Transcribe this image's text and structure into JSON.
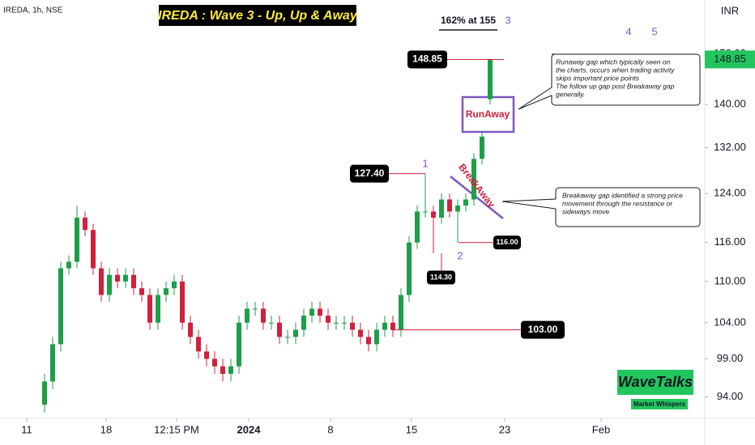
{
  "chart_data": {
    "type": "candlestick",
    "title": "IREDA : Wave 3 - Up, Up & Away",
    "symbol": "IREDA, 1h, NSE",
    "currency": "INR",
    "x": [
      0,
      1,
      2,
      3,
      4,
      5,
      6,
      7,
      8,
      9,
      10,
      11,
      12,
      13,
      14,
      15,
      16,
      17,
      18,
      19,
      20,
      21,
      22,
      23,
      24,
      25,
      26,
      27,
      28,
      29,
      30,
      31,
      32,
      33,
      34,
      35,
      36,
      37,
      38,
      39,
      40,
      41,
      42,
      43,
      44,
      45,
      46,
      47,
      48,
      49,
      50,
      51,
      52,
      53,
      54,
      55
    ],
    "open": [
      93,
      96,
      101,
      112,
      113,
      120,
      118,
      112,
      108,
      111,
      110,
      111,
      109,
      108,
      104,
      108,
      109,
      110,
      104,
      102,
      100,
      99,
      98,
      97,
      98,
      104,
      106,
      106,
      104,
      104,
      102,
      102,
      103,
      105,
      106,
      105,
      104,
      104,
      104,
      103,
      102,
      101,
      103,
      104,
      103,
      108,
      116,
      121,
      121,
      120,
      123,
      121,
      122,
      123,
      130,
      141
    ],
    "high": [
      97,
      102,
      113,
      114,
      122,
      121,
      119,
      113,
      112,
      112,
      112,
      112,
      110,
      109,
      109,
      110,
      111,
      111,
      105,
      103,
      101,
      100,
      99,
      99,
      105,
      107,
      107,
      107,
      105,
      105,
      103,
      104,
      106,
      107,
      107,
      106,
      105,
      105,
      105,
      104,
      103,
      104,
      105,
      105,
      109,
      117,
      122,
      127.4,
      122,
      124,
      124,
      123,
      124,
      131,
      135,
      149
    ],
    "low": [
      92,
      95,
      100,
      111,
      112,
      117,
      111,
      107,
      107,
      109,
      109,
      108,
      107,
      103,
      103,
      107,
      108,
      103,
      101,
      99,
      98,
      97,
      96,
      96,
      97,
      103,
      105,
      103,
      103,
      101,
      101,
      101,
      102,
      104,
      104,
      103,
      103,
      103,
      102,
      101,
      100,
      100,
      102,
      102,
      102,
      107,
      115,
      120,
      114.3,
      119,
      120,
      116,
      121,
      122,
      129,
      140
    ],
    "close": [
      96,
      101,
      112,
      113,
      120,
      118,
      112,
      108,
      111,
      110,
      111,
      109,
      108,
      104,
      108,
      109,
      110,
      104,
      102,
      100,
      99,
      98,
      97,
      98,
      104,
      106,
      106,
      104,
      104,
      102,
      102,
      103,
      105,
      106,
      105,
      104,
      104,
      104,
      103,
      102,
      101,
      103,
      104,
      103,
      108,
      116,
      121,
      121,
      120,
      123,
      121,
      122,
      123,
      130,
      134,
      148.85
    ],
    "up_color": "#1e9e4a",
    "down_color": "#d0213d",
    "log_scale": true,
    "grid": false,
    "ylim": [
      91.3,
      161.4
    ],
    "yticks": [
      {
        "value": 94,
        "label": "94.00"
      },
      {
        "value": 99,
        "label": "99.00"
      },
      {
        "value": 104,
        "label": "104.00"
      },
      {
        "value": 110,
        "label": "110.00"
      },
      {
        "value": 116,
        "label": "116.00"
      },
      {
        "value": 124,
        "label": "124.00"
      },
      {
        "value": 132,
        "label": "132.00"
      },
      {
        "value": 140,
        "label": "140.00"
      },
      {
        "value": 150,
        "label": "150.00"
      }
    ],
    "xlim": [
      -5.5,
      81.5
    ],
    "xticks": [
      {
        "value": -2.2,
        "label": "11"
      },
      {
        "value": 7.6,
        "label": "18"
      },
      {
        "value": 16.3,
        "label": "12:15 PM"
      },
      {
        "value": 25.2,
        "label": "2024"
      },
      {
        "value": 35.3,
        "label": "8"
      },
      {
        "value": 45.3,
        "label": "15"
      },
      {
        "value": 56.8,
        "label": "23"
      },
      {
        "value": 68.7,
        "label": "Feb"
      }
    ],
    "last_price": {
      "value": 148.85,
      "label": "148.85"
    },
    "price_labels": [
      {
        "value": 148.85,
        "label": "148.85"
      },
      {
        "value": 127.4,
        "label": "127.40"
      },
      {
        "value": 116,
        "label": "116.00"
      },
      {
        "value": 114.3,
        "label": "114.30"
      },
      {
        "value": 103,
        "label": "103.00"
      }
    ],
    "target_label": "162% at 155",
    "wave_labels": [
      "1",
      "2",
      "3",
      "4",
      "5"
    ],
    "gap_labels": [
      "RunAway",
      "BreakAway"
    ],
    "notes": [
      [
        "Runaway gap which typically seen on",
        "the charts, occurs when trading activity",
        "skips important price points",
        "The follow up gap post Breakaway gap",
        "generally."
      ],
      [
        "Breakaway gap  identified a strong price",
        "movement through the resistance or",
        "sideways move"
      ]
    ],
    "brand": {
      "name": "WaveTalks",
      "tagline": "Market Whispers"
    }
  }
}
